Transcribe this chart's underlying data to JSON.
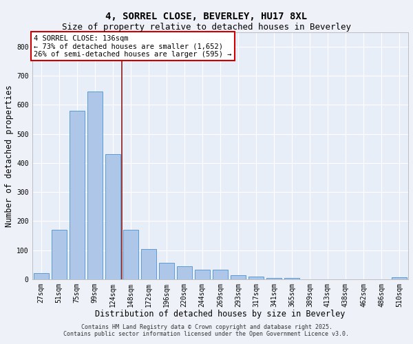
{
  "title": "4, SORREL CLOSE, BEVERLEY, HU17 8XL",
  "subtitle": "Size of property relative to detached houses in Beverley",
  "xlabel": "Distribution of detached houses by size in Beverley",
  "ylabel": "Number of detached properties",
  "bar_labels": [
    "27sqm",
    "51sqm",
    "75sqm",
    "99sqm",
    "124sqm",
    "148sqm",
    "172sqm",
    "196sqm",
    "220sqm",
    "244sqm",
    "269sqm",
    "293sqm",
    "317sqm",
    "341sqm",
    "365sqm",
    "389sqm",
    "413sqm",
    "438sqm",
    "462sqm",
    "486sqm",
    "510sqm"
  ],
  "bar_values": [
    20,
    170,
    580,
    645,
    430,
    170,
    103,
    57,
    44,
    32,
    32,
    14,
    8,
    5,
    5,
    0,
    0,
    0,
    0,
    0,
    7
  ],
  "bar_color": "#aec6e8",
  "bar_edgecolor": "#5b9bd5",
  "vline_x_index": 4,
  "vline_color": "#8b1a1a",
  "annotation_title": "4 SORREL CLOSE: 136sqm",
  "annotation_line1": "← 73% of detached houses are smaller (1,652)",
  "annotation_line2": "26% of semi-detached houses are larger (595) →",
  "annotation_box_color": "#ffffff",
  "annotation_border_color": "#cc0000",
  "ylim": [
    0,
    850
  ],
  "yticks": [
    0,
    100,
    200,
    300,
    400,
    500,
    600,
    700,
    800
  ],
  "background_color": "#eef2f8",
  "plot_background": "#e8eef8",
  "grid_color": "#ffffff",
  "footer1": "Contains HM Land Registry data © Crown copyright and database right 2025.",
  "footer2": "Contains public sector information licensed under the Open Government Licence v3.0.",
  "title_fontsize": 10,
  "subtitle_fontsize": 9,
  "axis_label_fontsize": 8.5,
  "tick_fontsize": 7,
  "annotation_fontsize": 7.5,
  "footer_fontsize": 6
}
